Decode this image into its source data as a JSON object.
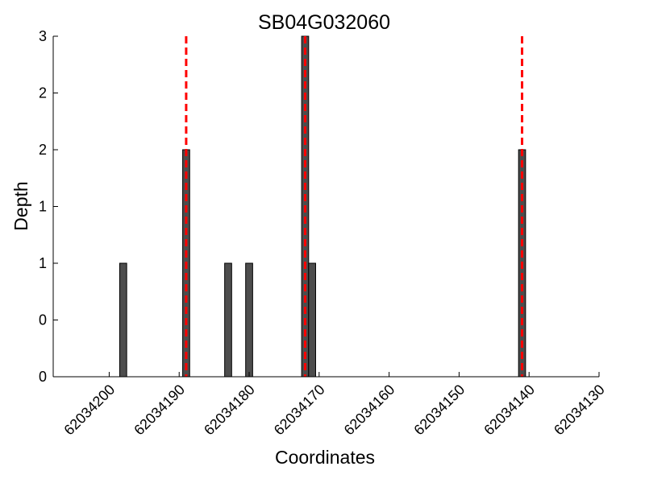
{
  "chart_data": {
    "type": "bar",
    "title": "SB04G032060",
    "xlabel": "Coordinates",
    "ylabel": "Depth",
    "xlim": [
      62034208,
      62034130
    ],
    "ylim": [
      0,
      3
    ],
    "x_ticks": [
      {
        "value": 62034200,
        "label": "62034200"
      },
      {
        "value": 62034190,
        "label": "62034190"
      },
      {
        "value": 62034180,
        "label": "62034180"
      },
      {
        "value": 62034170,
        "label": "62034170"
      },
      {
        "value": 62034160,
        "label": "62034160"
      },
      {
        "value": 62034150,
        "label": "62034150"
      },
      {
        "value": 62034140,
        "label": "62034140"
      },
      {
        "value": 62034130,
        "label": "62034130"
      }
    ],
    "y_ticks": [
      {
        "value": 0,
        "label": "0"
      },
      {
        "value": 0.5,
        "label": "0"
      },
      {
        "value": 1,
        "label": "1"
      },
      {
        "value": 1.5,
        "label": "1"
      },
      {
        "value": 2,
        "label": "2"
      },
      {
        "value": 2.5,
        "label": "2"
      },
      {
        "value": 3,
        "label": "3"
      }
    ],
    "x": [
      62034198,
      62034189,
      62034183,
      62034180,
      62034172,
      62034171,
      62034141
    ],
    "values": [
      1,
      2,
      1,
      1,
      3,
      1,
      2
    ],
    "bar_color": "#4d4d4d",
    "markers": [
      62034189,
      62034172,
      62034141
    ],
    "marker_color": "#ff0000",
    "grid": false
  }
}
